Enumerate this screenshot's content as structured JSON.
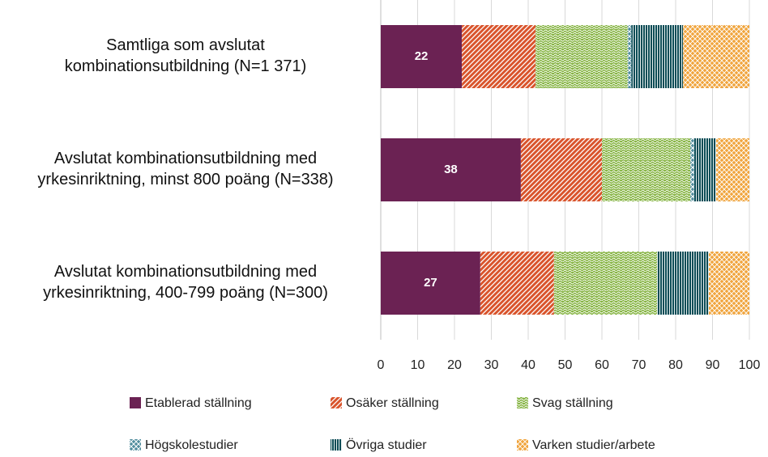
{
  "chart_data": {
    "type": "stacked-bar-horizontal",
    "categories": [
      "Samtliga som avslutat\nkombinationsutbildning (N=1 371)",
      "Avslutat kombinationsutbildning med\nyrkesinriktning, minst 800 poäng (N=338)",
      "Avslutat kombinationsutbildning med\nyrkesinriktning, 400-799 poäng (N=300)"
    ],
    "series": [
      {
        "name": "Etablerad ställning",
        "color": "#6b2253",
        "values": [
          22,
          38,
          27
        ]
      },
      {
        "name": "Osäker ställning",
        "color": "#d9542c",
        "values": [
          20,
          22,
          20
        ]
      },
      {
        "name": "Svag ställning",
        "color": "#86b443",
        "values": [
          25,
          24,
          28
        ]
      },
      {
        "name": "Högskolestudier",
        "color": "#4f8c9c",
        "values": [
          1,
          1,
          0
        ]
      },
      {
        "name": "Övriga studier",
        "color": "#0b4c56",
        "values": [
          14,
          6,
          14
        ]
      },
      {
        "name": "Varken studier/arbete",
        "color": "#f0a43c",
        "values": [
          18,
          9,
          11
        ]
      }
    ],
    "xlim": [
      0,
      100
    ],
    "xticks": [
      0,
      10,
      20,
      30,
      40,
      50,
      60,
      70,
      80,
      90,
      100
    ],
    "grid": true
  }
}
